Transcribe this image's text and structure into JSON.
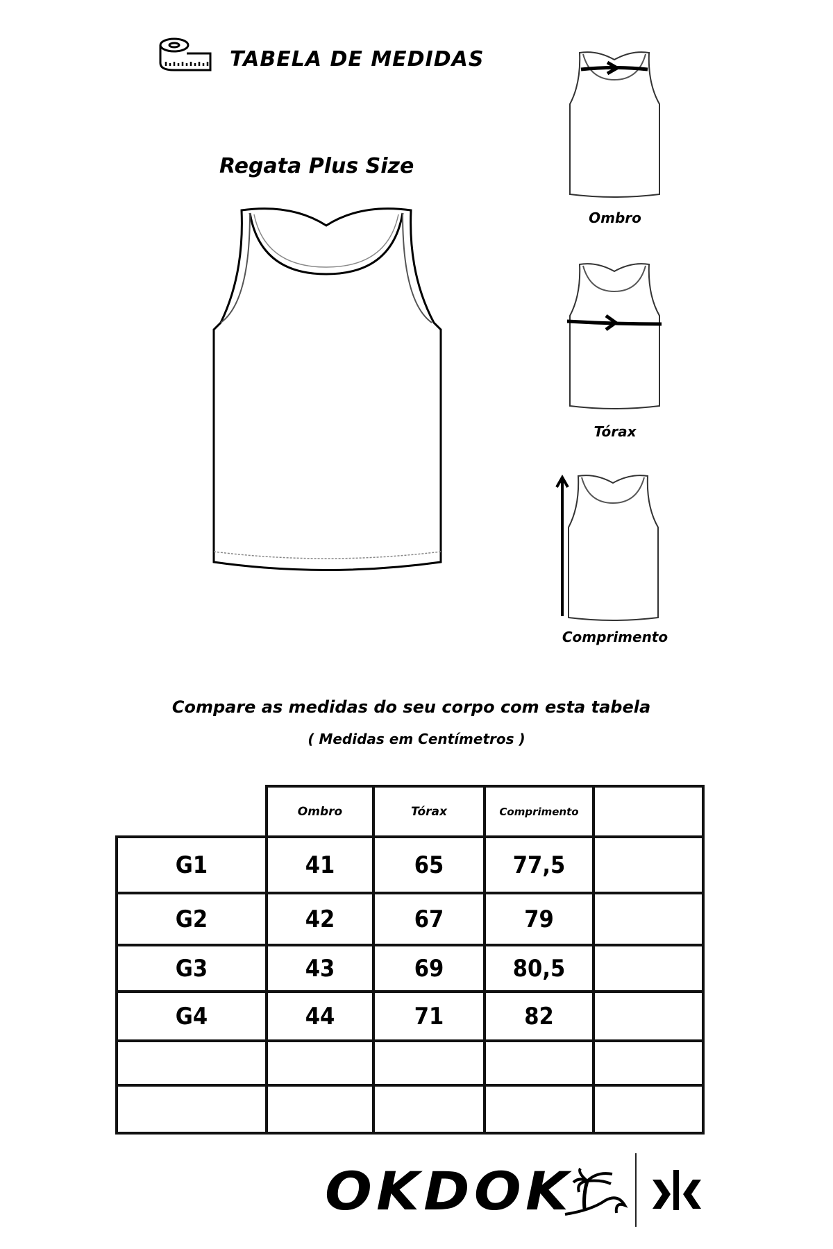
{
  "header": {
    "title": "TABELA DE MEDIDAS",
    "icon": "measuring-tape-icon"
  },
  "product": {
    "name": "Regata Plus Size"
  },
  "guides": [
    {
      "label": "Ombro"
    },
    {
      "label": "Tórax"
    },
    {
      "label": "Comprimento"
    }
  ],
  "instructions": {
    "compare": "Compare as medidas do seu corpo com esta tabela",
    "units": "( Medidas em Centímetros )"
  },
  "table": {
    "columns": [
      "Ombro",
      "Tórax",
      "Comprimento",
      ""
    ],
    "rows": [
      {
        "size": "G1",
        "values": [
          "41",
          "65",
          "77,5",
          ""
        ]
      },
      {
        "size": "G2",
        "values": [
          "42",
          "67",
          "79",
          ""
        ]
      },
      {
        "size": "G3",
        "values": [
          "43",
          "69",
          "80,5",
          ""
        ]
      },
      {
        "size": "G4",
        "values": [
          "44",
          "71",
          "82",
          ""
        ]
      },
      {
        "size": "",
        "values": [
          "",
          "",
          "",
          ""
        ]
      },
      {
        "size": "",
        "values": [
          "",
          "",
          "",
          ""
        ]
      }
    ]
  },
  "brand": {
    "name": "OKDOK",
    "icons": [
      "palm-tree-wave-icon",
      "okdok-monogram-icon"
    ]
  }
}
